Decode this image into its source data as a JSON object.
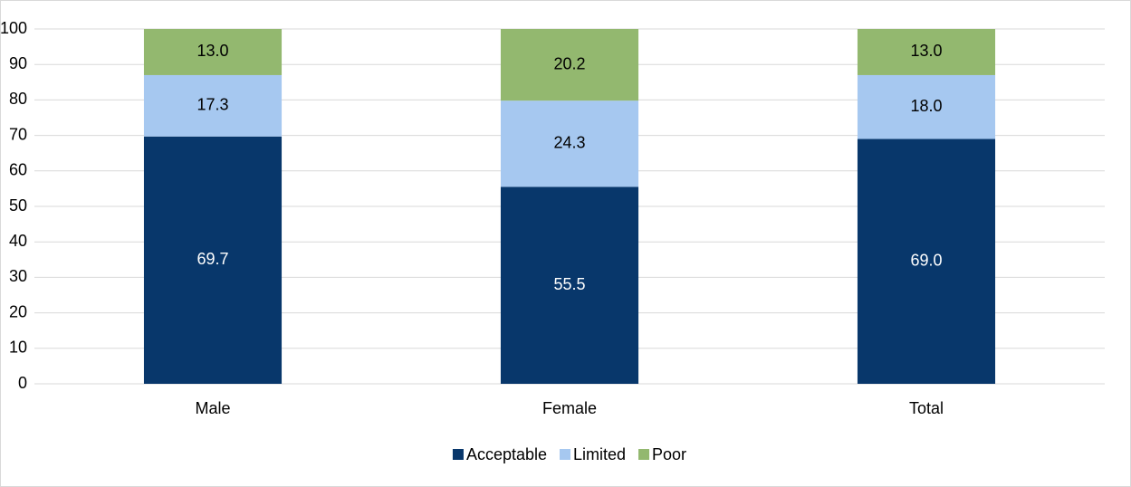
{
  "chart_data": {
    "type": "stacked_bar",
    "categories": [
      "Male",
      "Female",
      "Total"
    ],
    "series": [
      {
        "name": "Acceptable",
        "color": "#08376b",
        "values": [
          69.7,
          55.5,
          69.0
        ],
        "value_labels": [
          "69.7",
          "55.5",
          "69.0"
        ]
      },
      {
        "name": "Limited",
        "color": "#a6c8f0",
        "values": [
          17.3,
          24.3,
          18.0
        ],
        "value_labels": [
          "17.3",
          "24.3",
          "18.0"
        ]
      },
      {
        "name": "Poor",
        "color": "#93b86f",
        "values": [
          13.0,
          20.2,
          13.0
        ],
        "value_labels": [
          "13.0",
          "20.2",
          "13.0"
        ]
      }
    ],
    "ylim": [
      0,
      100
    ],
    "yticks": [
      0,
      10,
      20,
      30,
      40,
      50,
      60,
      70,
      80,
      90,
      100
    ],
    "grid": true,
    "legend": "bottom"
  }
}
